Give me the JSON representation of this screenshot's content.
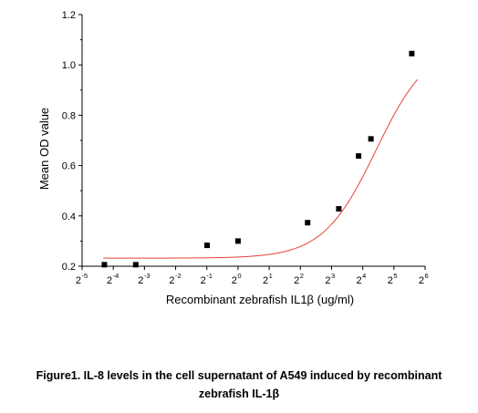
{
  "chart_data": {
    "type": "scatter",
    "xlabel": "Recombinant zebrafish IL1β (ug/ml)",
    "ylabel": "Mean OD value",
    "x_scale": "log2",
    "xlim": [
      0.03125,
      64
    ],
    "ylim": [
      0.2,
      1.2
    ],
    "x_ticks": [
      {
        "base": "2",
        "exp": "-5"
      },
      {
        "base": "2",
        "exp": "-4"
      },
      {
        "base": "2",
        "exp": "-3"
      },
      {
        "base": "2",
        "exp": "-2"
      },
      {
        "base": "2",
        "exp": "-1"
      },
      {
        "base": "2",
        "exp": "0"
      },
      {
        "base": "2",
        "exp": "1"
      },
      {
        "base": "2",
        "exp": "2"
      },
      {
        "base": "2",
        "exp": "3"
      },
      {
        "base": "2",
        "exp": "4"
      },
      {
        "base": "2",
        "exp": "5"
      },
      {
        "base": "2",
        "exp": "6"
      }
    ],
    "y_ticks": [
      "0.2",
      "0.4",
      "0.6",
      "0.8",
      "1.0",
      "1.2"
    ],
    "grid": false,
    "points": {
      "marker": "square",
      "color": "#000000",
      "x": [
        0.0513,
        0.103,
        0.503,
        1.0,
        4.7,
        9.4,
        14.6,
        19.2,
        47.6
      ],
      "y": [
        0.206,
        0.206,
        0.283,
        0.3,
        0.373,
        0.428,
        0.638,
        0.706,
        1.045
      ]
    },
    "fit": {
      "type": "logistic",
      "color": "#e8403a",
      "bottom": 0.232,
      "top": 1.09,
      "ec50": 21.5,
      "hill": 1.7,
      "x_range": [
        0.05,
        54
      ]
    }
  },
  "caption": {
    "line1": "Figure1. IL-8 levels in the cell supernatant of A549 induced by recombinant",
    "line2": "zebrafish IL-1β"
  }
}
